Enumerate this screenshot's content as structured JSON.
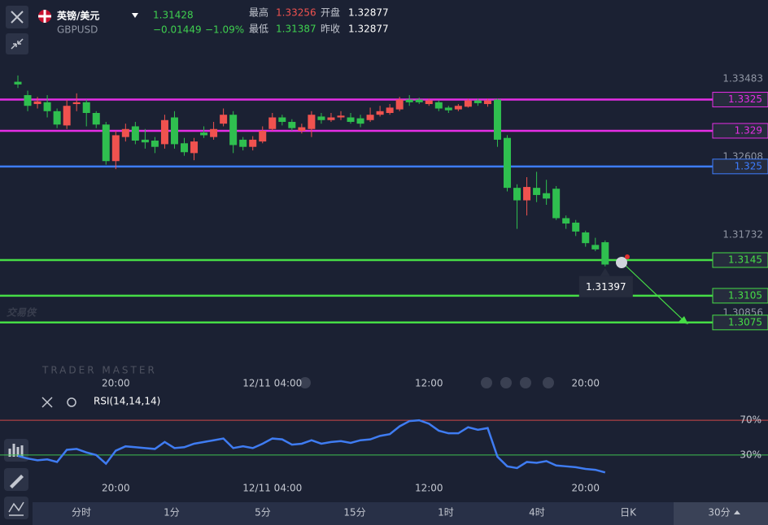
{
  "header": {
    "pair": "英镑/美元",
    "symbol": "GBPUSD",
    "price": 1.31428,
    "change": "−0.01449",
    "change_pct": "−1.09%",
    "stats": [
      {
        "label": "最高",
        "value": 1.33256
      },
      {
        "label": "开盘",
        "value": 1.32877
      },
      {
        "label": "最低",
        "value": 1.31387
      },
      {
        "label": "昨收",
        "value": 1.32877
      }
    ]
  },
  "watermark": {
    "logo": "交易侠",
    "text": "TRADER MASTER"
  },
  "chart_data": [
    {
      "type": "candlestick",
      "up_color": "#f0524f",
      "down_color": "#2fbf4f",
      "open": [
        1.3345,
        1.333,
        1.332,
        1.3322,
        1.3312,
        1.3296,
        1.332,
        1.3322,
        1.331,
        1.3297,
        1.3256,
        1.3283,
        1.3295,
        1.328,
        1.3279,
        1.3275,
        1.3305,
        1.3276,
        1.3265,
        1.3288,
        1.3283,
        1.3298,
        1.3308,
        1.328,
        1.3272,
        1.3278,
        1.3292,
        1.3305,
        1.33,
        1.329,
        1.3292,
        1.3306,
        1.3302,
        1.3305,
        1.3305,
        1.3304,
        1.3302,
        1.3308,
        1.331,
        1.3314,
        1.3325,
        1.3325,
        1.332,
        1.3322,
        1.3316,
        1.3314,
        1.3317,
        1.3324,
        1.332,
        1.3325,
        1.3282,
        1.3226,
        1.3212,
        1.3226,
        1.322,
        1.3225,
        1.3192,
        1.3187,
        1.3176,
        1.3162,
        1.3165
      ],
      "high": [
        1.3352,
        1.3335,
        1.3328,
        1.333,
        1.3315,
        1.3325,
        1.3332,
        1.3325,
        1.3312,
        1.33,
        1.329,
        1.3298,
        1.33,
        1.3292,
        1.3283,
        1.3308,
        1.3312,
        1.3282,
        1.3282,
        1.3295,
        1.33,
        1.3315,
        1.3312,
        1.3283,
        1.3284,
        1.3295,
        1.331,
        1.3308,
        1.3303,
        1.3298,
        1.3312,
        1.331,
        1.331,
        1.3312,
        1.331,
        1.3308,
        1.3316,
        1.3318,
        1.332,
        1.3328,
        1.333,
        1.3327,
        1.3326,
        1.3324,
        1.3318,
        1.332,
        1.3326,
        1.3326,
        1.3326,
        1.3326,
        1.3285,
        1.323,
        1.3238,
        1.3244,
        1.3235,
        1.3228,
        1.3195,
        1.319,
        1.3178,
        1.317,
        1.3167
      ],
      "low": [
        1.3338,
        1.3312,
        1.3315,
        1.3305,
        1.3293,
        1.3292,
        1.3312,
        1.3295,
        1.3293,
        1.3252,
        1.3247,
        1.3278,
        1.3275,
        1.327,
        1.3265,
        1.327,
        1.327,
        1.3262,
        1.3257,
        1.3282,
        1.328,
        1.3295,
        1.3265,
        1.3268,
        1.3268,
        1.3276,
        1.329,
        1.3296,
        1.329,
        1.3287,
        1.3283,
        1.3298,
        1.33,
        1.3302,
        1.3298,
        1.3294,
        1.33,
        1.3306,
        1.3308,
        1.3312,
        1.3318,
        1.332,
        1.3318,
        1.3312,
        1.331,
        1.3312,
        1.3316,
        1.3318,
        1.3317,
        1.3272,
        1.3222,
        1.318,
        1.3195,
        1.321,
        1.3207,
        1.319,
        1.318,
        1.3172,
        1.316,
        1.3155,
        1.3138
      ],
      "close": [
        1.3342,
        1.3318,
        1.3323,
        1.3312,
        1.3297,
        1.3318,
        1.3322,
        1.331,
        1.3297,
        1.3256,
        1.3285,
        1.3292,
        1.3279,
        1.3277,
        1.3272,
        1.3302,
        1.3275,
        1.3266,
        1.3278,
        1.3285,
        1.3292,
        1.3308,
        1.3274,
        1.3272,
        1.328,
        1.329,
        1.3305,
        1.33,
        1.3293,
        1.3294,
        1.3308,
        1.3302,
        1.3305,
        1.3307,
        1.33,
        1.3298,
        1.3308,
        1.3312,
        1.3316,
        1.3325,
        1.3322,
        1.3322,
        1.3324,
        1.3315,
        1.3313,
        1.3318,
        1.3324,
        1.3321,
        1.3324,
        1.328,
        1.3226,
        1.3212,
        1.3227,
        1.3218,
        1.3214,
        1.3192,
        1.3186,
        1.3177,
        1.3164,
        1.3157,
        1.314
      ],
      "ylim": [
        1.30174,
        1.34367
      ],
      "yticks": [
        1.33483,
        1.32608,
        1.31732,
        1.30856
      ],
      "xticks": [
        {
          "value": 10,
          "label": "20:00"
        },
        {
          "value": 26,
          "label": "12/11 04:00"
        },
        {
          "value": 42,
          "label": "12:00"
        },
        {
          "value": 58,
          "label": "20:00"
        }
      ],
      "levels": [
        {
          "value": 1.3325,
          "color": "#e52ee5"
        },
        {
          "value": 1.329,
          "color": "#e52ee5"
        },
        {
          "value": 1.325,
          "color": "#3d7dff"
        },
        {
          "value": 1.3145,
          "color": "#46dd46"
        },
        {
          "value": 1.3105,
          "color": "#46dd46"
        },
        {
          "value": 1.3075,
          "color": "#46dd46"
        }
      ],
      "last_price": 1.31397
    },
    {
      "type": "line",
      "title": "RSI(14,14,14)",
      "color": "#3f7cf2",
      "values": [
        29,
        26,
        24,
        25,
        22,
        36,
        37,
        33,
        30,
        20,
        35,
        40,
        39,
        38,
        37,
        45,
        38,
        39,
        43,
        45,
        47,
        49,
        38,
        40,
        38,
        43,
        49,
        48,
        42,
        43,
        47,
        43,
        45,
        46,
        44,
        47,
        48,
        52,
        54,
        63,
        69,
        70,
        66,
        58,
        55,
        55,
        62,
        59,
        61,
        28,
        17,
        15,
        22,
        21,
        23,
        18,
        17,
        16,
        14,
        13,
        10
      ],
      "ylim": [
        0,
        100
      ],
      "yticks": [
        {
          "value": 70,
          "label": "70%",
          "color": "#d04848"
        },
        {
          "value": 30,
          "label": "30%",
          "color": "#3fc04f"
        }
      ],
      "xticks": [
        {
          "value": 10,
          "label": "20:00"
        },
        {
          "value": 26,
          "label": "12/11 04:00"
        },
        {
          "value": 42,
          "label": "12:00"
        },
        {
          "value": 58,
          "label": "20:00"
        }
      ]
    }
  ],
  "tabs": [
    "分时",
    "1分",
    "5分",
    "15分",
    "1时",
    "4时",
    "日K",
    "30分"
  ]
}
